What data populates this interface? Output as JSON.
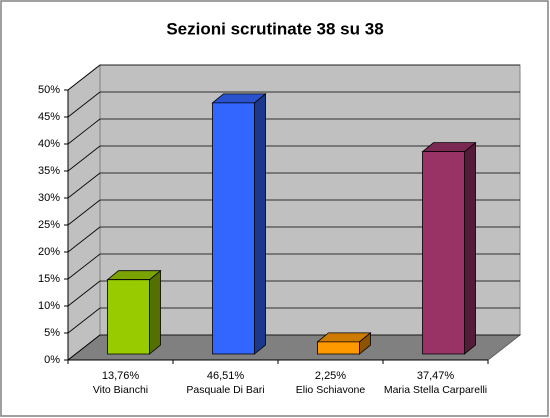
{
  "chart_data": {
    "type": "bar3d",
    "title": "Sezioni scrutinate 38 su 38",
    "categories": [
      "Vito Bianchi",
      "Pasquale Di Bari",
      "Elio Schiavone",
      "Maria Stella Carparelli"
    ],
    "values": [
      13.76,
      46.51,
      2.25,
      37.47
    ],
    "value_labels": [
      "13,76%",
      "46,51%",
      "2,25%",
      "37,47%"
    ],
    "colors": [
      "#99cc00",
      "#3366ff",
      "#ff9900",
      "#993366"
    ],
    "ylim": [
      0,
      50
    ],
    "yticks": [
      {
        "value": 0,
        "label": "0%"
      },
      {
        "value": 5,
        "label": "5%"
      },
      {
        "value": 10,
        "label": "10%"
      },
      {
        "value": 15,
        "label": "15%"
      },
      {
        "value": 20,
        "label": "20%"
      },
      {
        "value": 25,
        "label": "25%"
      },
      {
        "value": 30,
        "label": "30%"
      },
      {
        "value": 35,
        "label": "35%"
      },
      {
        "value": 40,
        "label": "40%"
      },
      {
        "value": 45,
        "label": "45%"
      },
      {
        "value": 50,
        "label": "50%"
      }
    ],
    "grid": true
  }
}
